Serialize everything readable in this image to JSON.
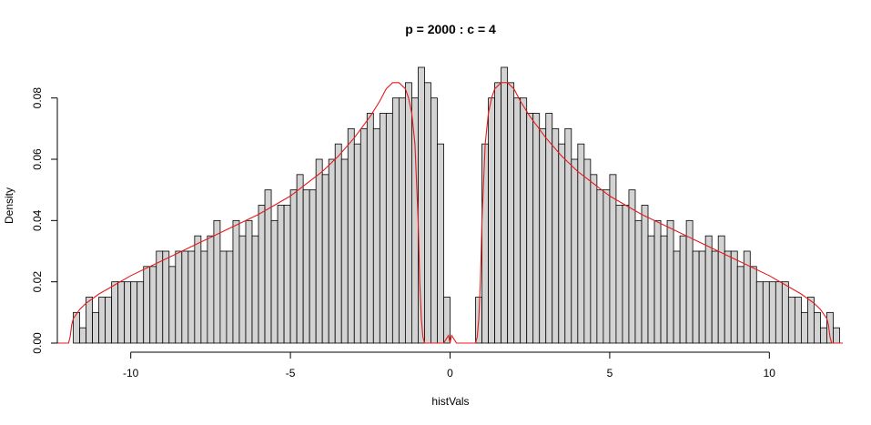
{
  "chart_data": {
    "type": "bar",
    "title": "p = 2000 : c = 4",
    "xlabel": "histVals",
    "ylabel": "Density",
    "xlim": [
      -12.3,
      12.3
    ],
    "ylim": [
      0,
      0.09
    ],
    "x_ticks": [
      -10,
      -5,
      0,
      5,
      10
    ],
    "x_tick_labels": [
      "-10",
      "-5",
      "0",
      "5",
      "10"
    ],
    "y_ticks": [
      0,
      0.02,
      0.04,
      0.06,
      0.08
    ],
    "y_tick_labels": [
      "0.00",
      "0.02",
      "0.04",
      "0.06",
      "0.08"
    ],
    "grid": false,
    "legend": "none",
    "bin_width": 0.2,
    "bins_left": {
      "x_start": -11.8,
      "values": [
        0.01,
        0.005,
        0.015,
        0.01,
        0.015,
        0.015,
        0.02,
        0.02,
        0.02,
        0.02,
        0.02,
        0.025,
        0.025,
        0.03,
        0.03,
        0.025,
        0.03,
        0.03,
        0.03,
        0.035,
        0.03,
        0.035,
        0.04,
        0.03,
        0.03,
        0.04,
        0.035,
        0.04,
        0.035,
        0.045,
        0.05,
        0.04,
        0.045,
        0.045,
        0.05,
        0.055,
        0.05,
        0.05,
        0.06,
        0.055,
        0.06,
        0.065,
        0.06,
        0.07,
        0.065,
        0.07,
        0.075,
        0.07,
        0.075,
        0.075,
        0.08,
        0.08,
        0.085,
        0.08,
        0.09,
        0.085,
        0.08,
        0.065,
        0.015
      ]
    },
    "bins_right": {
      "x_start": 0.8,
      "values": [
        0.015,
        0.065,
        0.08,
        0.085,
        0.09,
        0.085,
        0.08,
        0.08,
        0.075,
        0.075,
        0.07,
        0.075,
        0.07,
        0.065,
        0.07,
        0.06,
        0.065,
        0.06,
        0.055,
        0.05,
        0.05,
        0.055,
        0.045,
        0.045,
        0.05,
        0.04,
        0.045,
        0.035,
        0.04,
        0.035,
        0.04,
        0.03,
        0.035,
        0.04,
        0.03,
        0.03,
        0.035,
        0.03,
        0.035,
        0.03,
        0.03,
        0.025,
        0.03,
        0.025,
        0.02,
        0.02,
        0.02,
        0.02,
        0.02,
        0.015,
        0.015,
        0.01,
        0.015,
        0.01,
        0.005,
        0.01,
        0.005
      ]
    },
    "density_curve": {
      "color": "#e41a1c",
      "x": [
        -12.3,
        -11.95,
        -11.9,
        -11.85,
        -11.8,
        -11.6,
        -11.4,
        -11.0,
        -10.5,
        -10.0,
        -9.0,
        -8.0,
        -7.0,
        -6.0,
        -5.0,
        -4.0,
        -3.5,
        -3.0,
        -2.5,
        -2.2,
        -2.0,
        -1.8,
        -1.6,
        -1.4,
        -1.3,
        -1.2,
        -1.1,
        -1.0,
        -0.95,
        -0.9,
        -0.85,
        -0.8,
        -0.2,
        -0.05,
        0,
        0.05,
        0.2,
        0.8,
        0.85,
        0.9,
        0.95,
        1.0,
        1.1,
        1.2,
        1.3,
        1.4,
        1.6,
        1.8,
        2.0,
        2.2,
        2.5,
        3.0,
        3.5,
        4.0,
        5.0,
        6.0,
        7.0,
        8.0,
        9.0,
        10.0,
        10.5,
        11.0,
        11.4,
        11.6,
        11.8,
        11.85,
        11.9,
        11.95,
        12.3
      ],
      "y": [
        0,
        0,
        0.002,
        0.006,
        0.008,
        0.011,
        0.013,
        0.016,
        0.019,
        0.022,
        0.027,
        0.032,
        0.037,
        0.042,
        0.048,
        0.056,
        0.061,
        0.067,
        0.074,
        0.079,
        0.083,
        0.085,
        0.085,
        0.083,
        0.08,
        0.075,
        0.065,
        0.04,
        0.02,
        0.008,
        0.002,
        0,
        0,
        0.0025,
        0,
        0.0025,
        0,
        0,
        0.002,
        0.008,
        0.02,
        0.04,
        0.065,
        0.075,
        0.08,
        0.083,
        0.085,
        0.085,
        0.083,
        0.079,
        0.074,
        0.067,
        0.061,
        0.056,
        0.048,
        0.042,
        0.037,
        0.032,
        0.027,
        0.022,
        0.019,
        0.016,
        0.013,
        0.011,
        0.008,
        0.006,
        0.002,
        0,
        0
      ]
    },
    "bar_fill": "#d3d3d3",
    "bar_stroke": "#000000",
    "curve_color": "#e41a1c"
  }
}
